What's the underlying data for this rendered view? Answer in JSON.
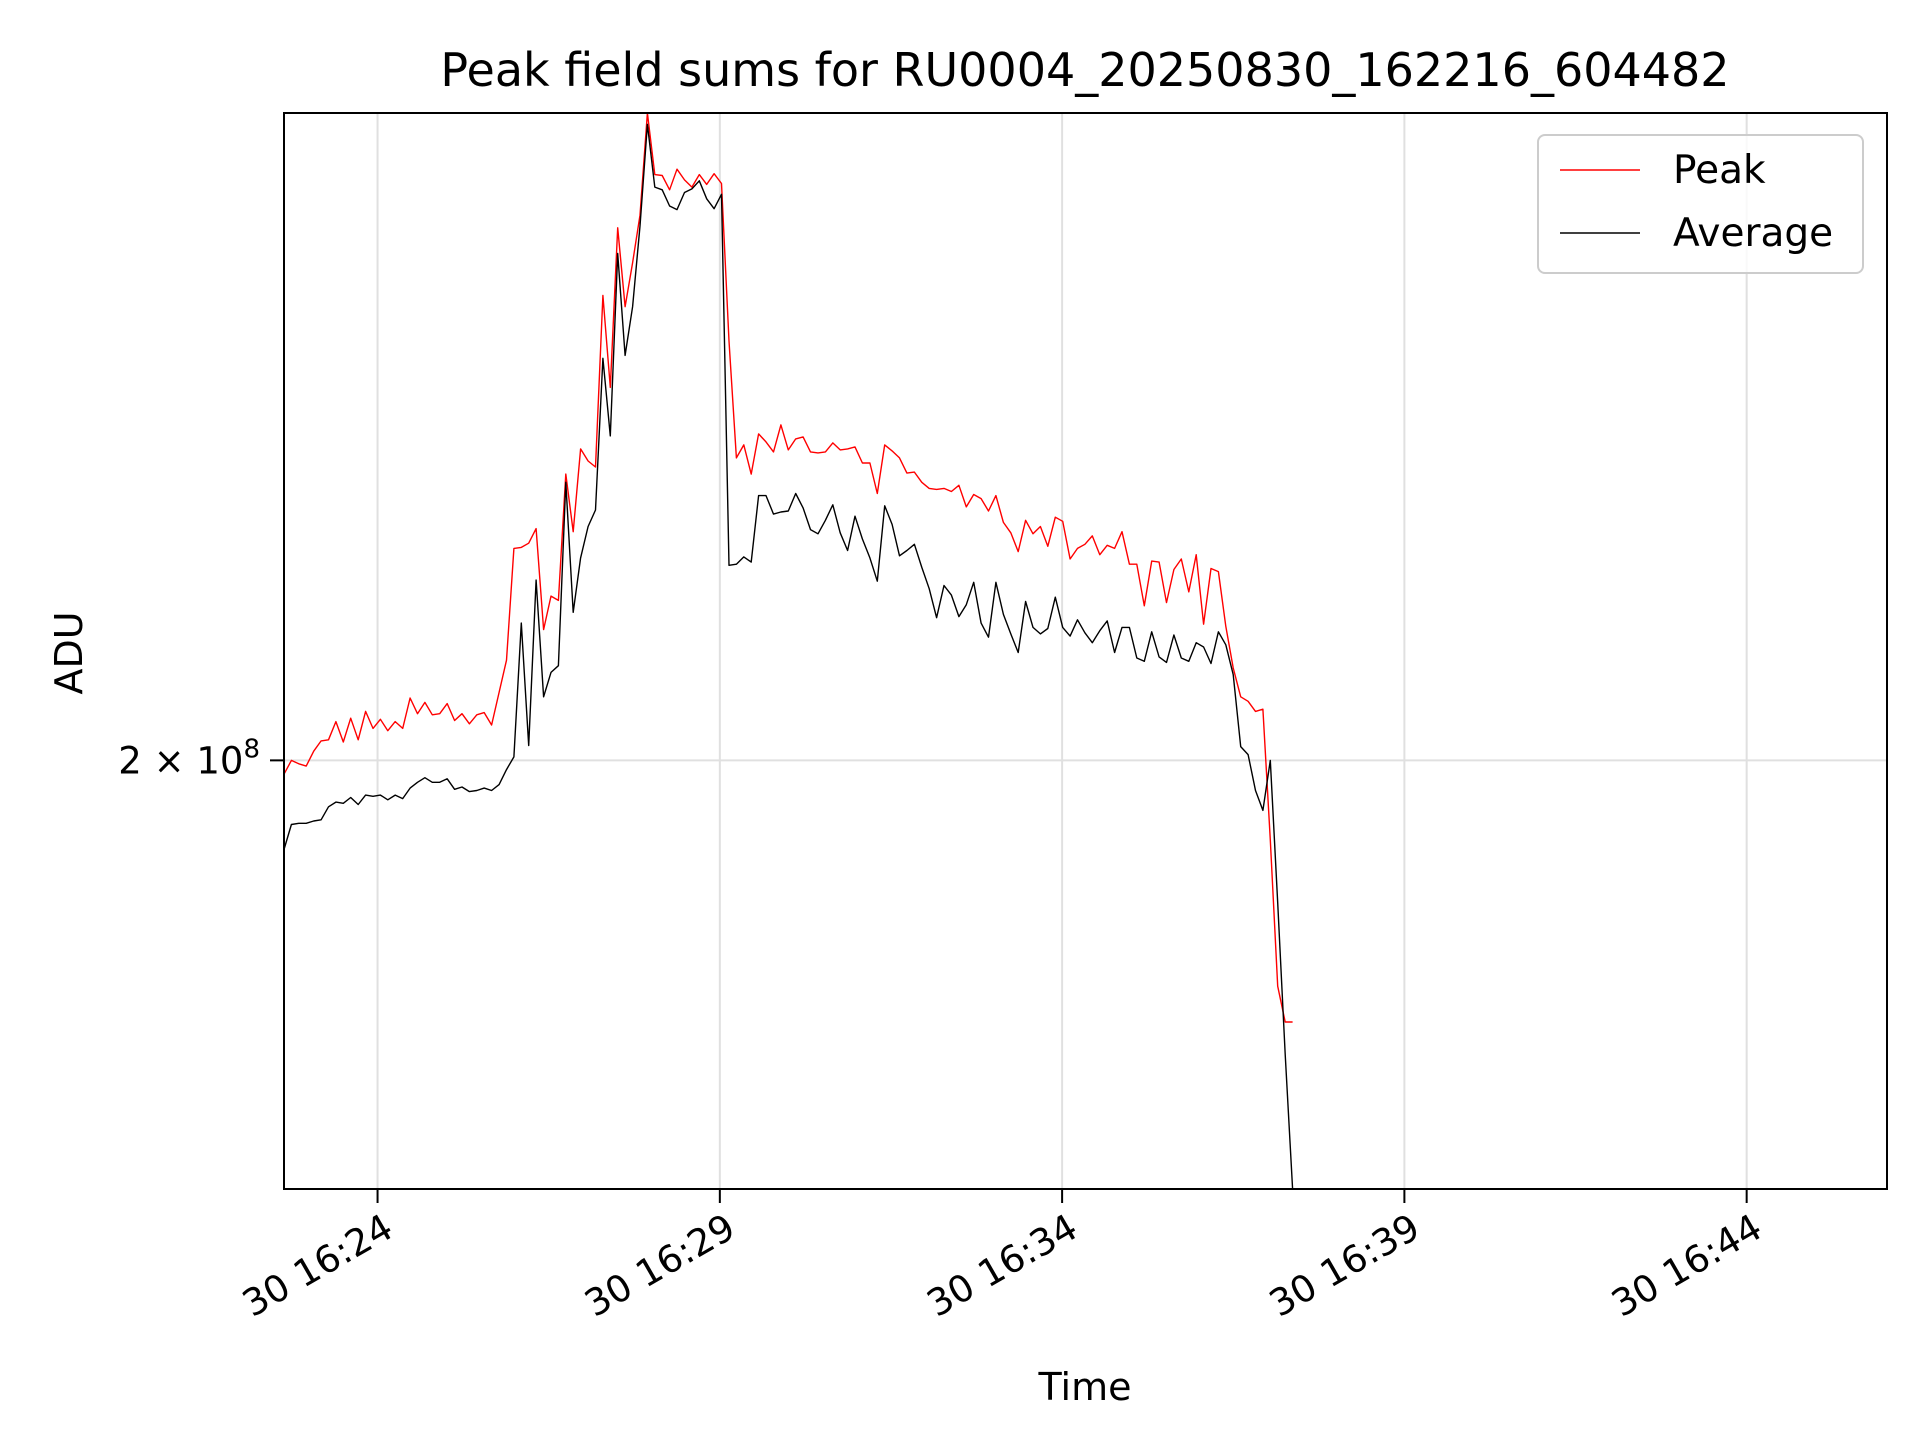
{
  "chart_data": {
    "type": "line",
    "title": "Peak field sums for RU0004_20250830_162216_604482",
    "xlabel": "Time",
    "ylabel": "ADU",
    "yscale": "log",
    "grid": true,
    "legend_position": "top-right",
    "x_start": "2025-08-30 16:22:38",
    "x_end": "2025-08-30 16:46:03",
    "x_step_seconds": 6.5,
    "xticks": [
      {
        "value": "2025-08-30 16:24",
        "label": "30 16:24"
      },
      {
        "value": "2025-08-30 16:29",
        "label": "30 16:29"
      },
      {
        "value": "2025-08-30 16:34",
        "label": "30 16:34"
      },
      {
        "value": "2025-08-30 16:39",
        "label": "30 16:39"
      },
      {
        "value": "2025-08-30 16:44",
        "label": "30 16:44"
      }
    ],
    "yticks": [
      {
        "value": 200000000,
        "label_base": "2 × 10",
        "label_exp": "8"
      }
    ],
    "ylim": [
      166000000,
      265000000
    ],
    "series": [
      {
        "name": "Peak",
        "color": "#ff0000",
        "values": [
          198.8,
          200.0,
          199.7,
          199.5,
          200.8,
          201.7,
          201.8,
          203.4,
          201.6,
          203.7,
          201.8,
          204.3,
          202.8,
          203.6,
          202.6,
          203.4,
          202.8,
          205.5,
          204.1,
          205.1,
          204.0,
          204.1,
          205.0,
          203.5,
          204.1,
          203.2,
          204.0,
          204.2,
          203.1,
          206.0,
          208.9,
          219.3,
          219.4,
          219.8,
          221.2,
          211.7,
          214.8,
          214.4,
          226.5,
          220.9,
          229.0,
          227.8,
          227.2,
          244.8,
          235.2,
          252.1,
          243.6,
          248.3,
          253.5,
          265.0,
          258.0,
          257.9,
          256.3,
          258.6,
          257.4,
          256.6,
          258.0,
          256.9,
          258.1,
          257.0,
          240.0,
          228.1,
          229.4,
          226.5,
          230.5,
          229.7,
          228.7,
          231.4,
          228.9,
          230.0,
          230.2,
          228.7,
          228.6,
          228.7,
          229.6,
          228.9,
          229.0,
          229.2,
          227.6,
          227.6,
          224.6,
          229.4,
          228.8,
          228.1,
          226.6,
          226.7,
          225.7,
          225.1,
          225.0,
          225.1,
          224.8,
          225.4,
          223.3,
          224.5,
          224.1,
          222.9,
          224.4,
          221.8,
          220.8,
          219.0,
          222.0,
          220.7,
          221.4,
          219.5,
          222.3,
          221.9,
          218.3,
          219.3,
          219.7,
          220.5,
          218.7,
          219.6,
          219.3,
          220.9,
          217.8,
          217.8,
          213.9,
          218.1,
          218.0,
          214.2,
          217.3,
          218.3,
          215.2,
          218.7,
          212.2,
          217.4,
          217.1,
          212.0,
          208.2,
          205.6,
          205.2,
          204.3,
          204.5,
          193.2,
          181.3,
          178.5,
          178.5
        ]
      },
      {
        "name": "Average",
        "color": "#000000",
        "values": [
          192.4,
          194.5,
          194.6,
          194.6,
          194.8,
          194.9,
          196.0,
          196.4,
          196.3,
          196.8,
          196.2,
          197.0,
          196.9,
          197.0,
          196.6,
          197.0,
          196.7,
          197.6,
          198.1,
          198.5,
          198.1,
          198.1,
          198.4,
          197.5,
          197.7,
          197.3,
          197.4,
          197.6,
          197.4,
          197.9,
          199.2,
          200.3,
          212.3,
          201.3,
          216.3,
          205.6,
          207.8,
          208.4,
          225.7,
          213.3,
          218.4,
          221.4,
          223.0,
          238.2,
          230.3,
          249.3,
          238.5,
          243.6,
          252.3,
          263.7,
          256.6,
          256.3,
          254.5,
          254.1,
          256.0,
          256.4,
          257.3,
          255.3,
          254.2,
          255.8,
          217.7,
          217.8,
          218.5,
          218.0,
          224.4,
          224.4,
          222.6,
          222.8,
          222.9,
          224.6,
          223.2,
          221.1,
          220.7,
          222.0,
          223.5,
          220.8,
          219.1,
          222.4,
          220.2,
          218.4,
          216.2,
          223.4,
          221.6,
          218.6,
          219.1,
          219.7,
          217.5,
          215.5,
          212.8,
          215.8,
          214.9,
          212.9,
          214.0,
          216.1,
          212.3,
          211.0,
          216.1,
          213.1,
          211.3,
          209.6,
          214.3,
          211.9,
          211.3,
          211.8,
          214.7,
          211.9,
          211.1,
          212.6,
          211.4,
          210.5,
          211.6,
          212.5,
          209.6,
          211.9,
          211.9,
          209.1,
          208.8,
          211.5,
          209.2,
          208.7,
          211.2,
          209.1,
          208.8,
          210.5,
          210.1,
          208.6,
          211.5,
          210.3,
          207.6,
          201.2,
          200.5,
          197.4,
          195.7,
          200.0,
          188.0,
          176.0,
          166.0
        ]
      }
    ]
  }
}
